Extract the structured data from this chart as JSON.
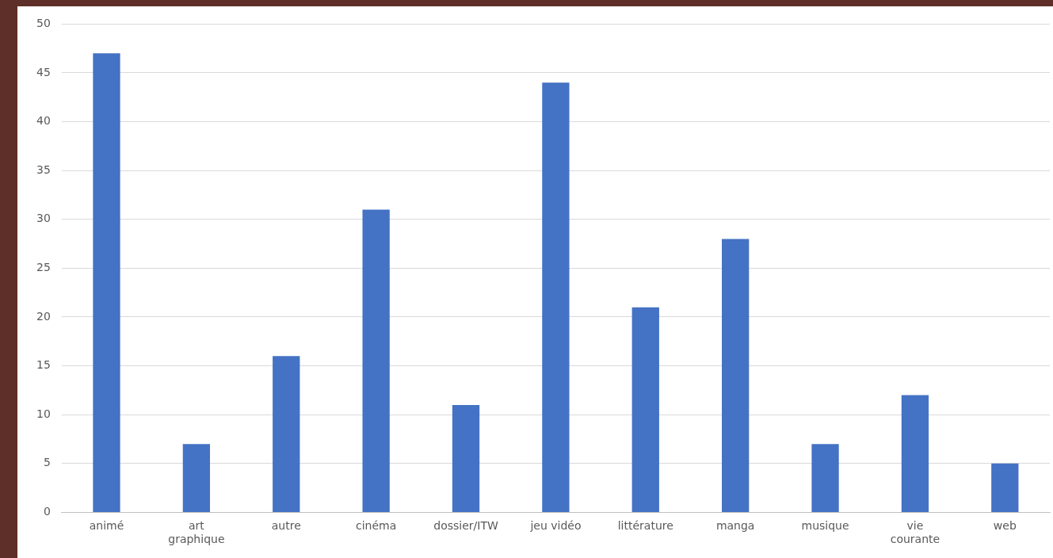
{
  "chart_data": {
    "type": "bar",
    "categories": [
      "animé",
      "art graphique",
      "autre",
      "cinéma",
      "dossier/ITW",
      "jeu vidéo",
      "littérature",
      "manga",
      "musique",
      "vie courante",
      "web"
    ],
    "values": [
      47,
      7,
      16,
      31,
      11,
      44,
      21,
      28,
      7,
      12,
      5
    ],
    "color": "#4472c4",
    "ylim": [
      0,
      50
    ],
    "yticks": [
      0,
      5,
      10,
      15,
      20,
      25,
      30,
      35,
      40,
      45,
      50
    ],
    "grid": "y"
  }
}
